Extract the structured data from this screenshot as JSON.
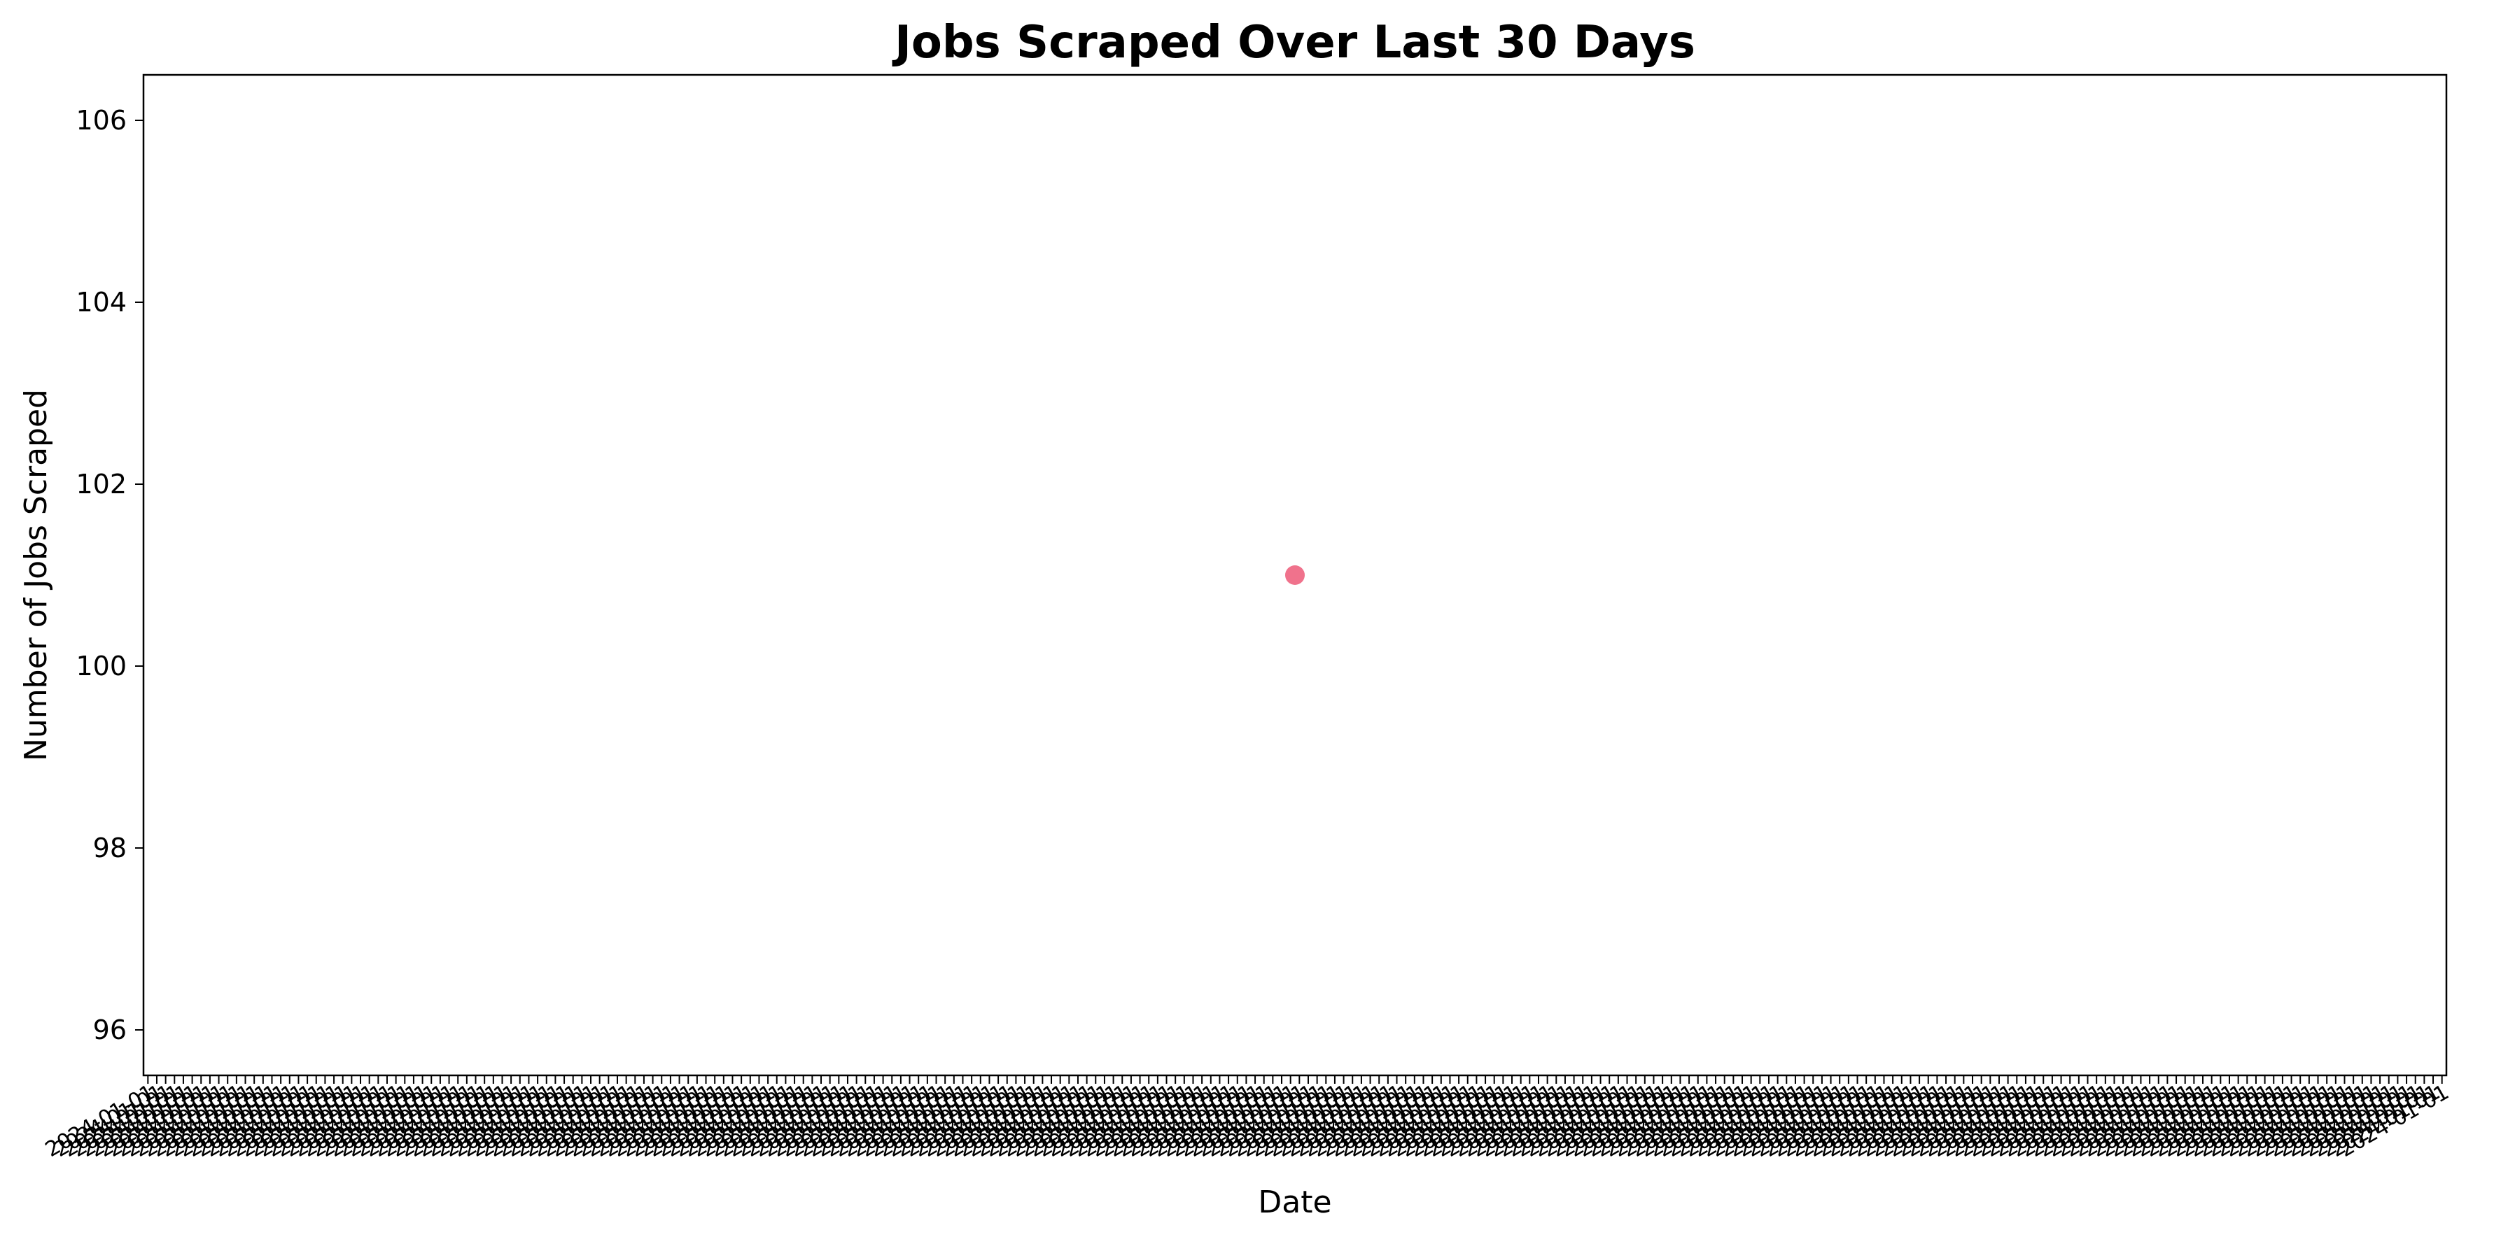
{
  "chart_data": {
    "type": "scatter",
    "title": "Jobs Scraped Over Last 30 Days",
    "xlabel": "Date",
    "ylabel": "Number of Jobs Scraped",
    "ylim": [
      95.5,
      106.5
    ],
    "y_ticks": [
      96,
      98,
      100,
      102,
      104,
      106
    ],
    "grid": false,
    "legend": "none",
    "point_color": "#f0728c",
    "series": [
      {
        "values": [
          {
            "x_position": 0.5,
            "y": 101
          }
        ]
      }
    ],
    "x_tick_note": "x tick labels are densely overlapped and illegible; rendered as overlapping rotated labels",
    "x_tick_count": 260,
    "x_tick_label_text": "2024-01-01"
  }
}
